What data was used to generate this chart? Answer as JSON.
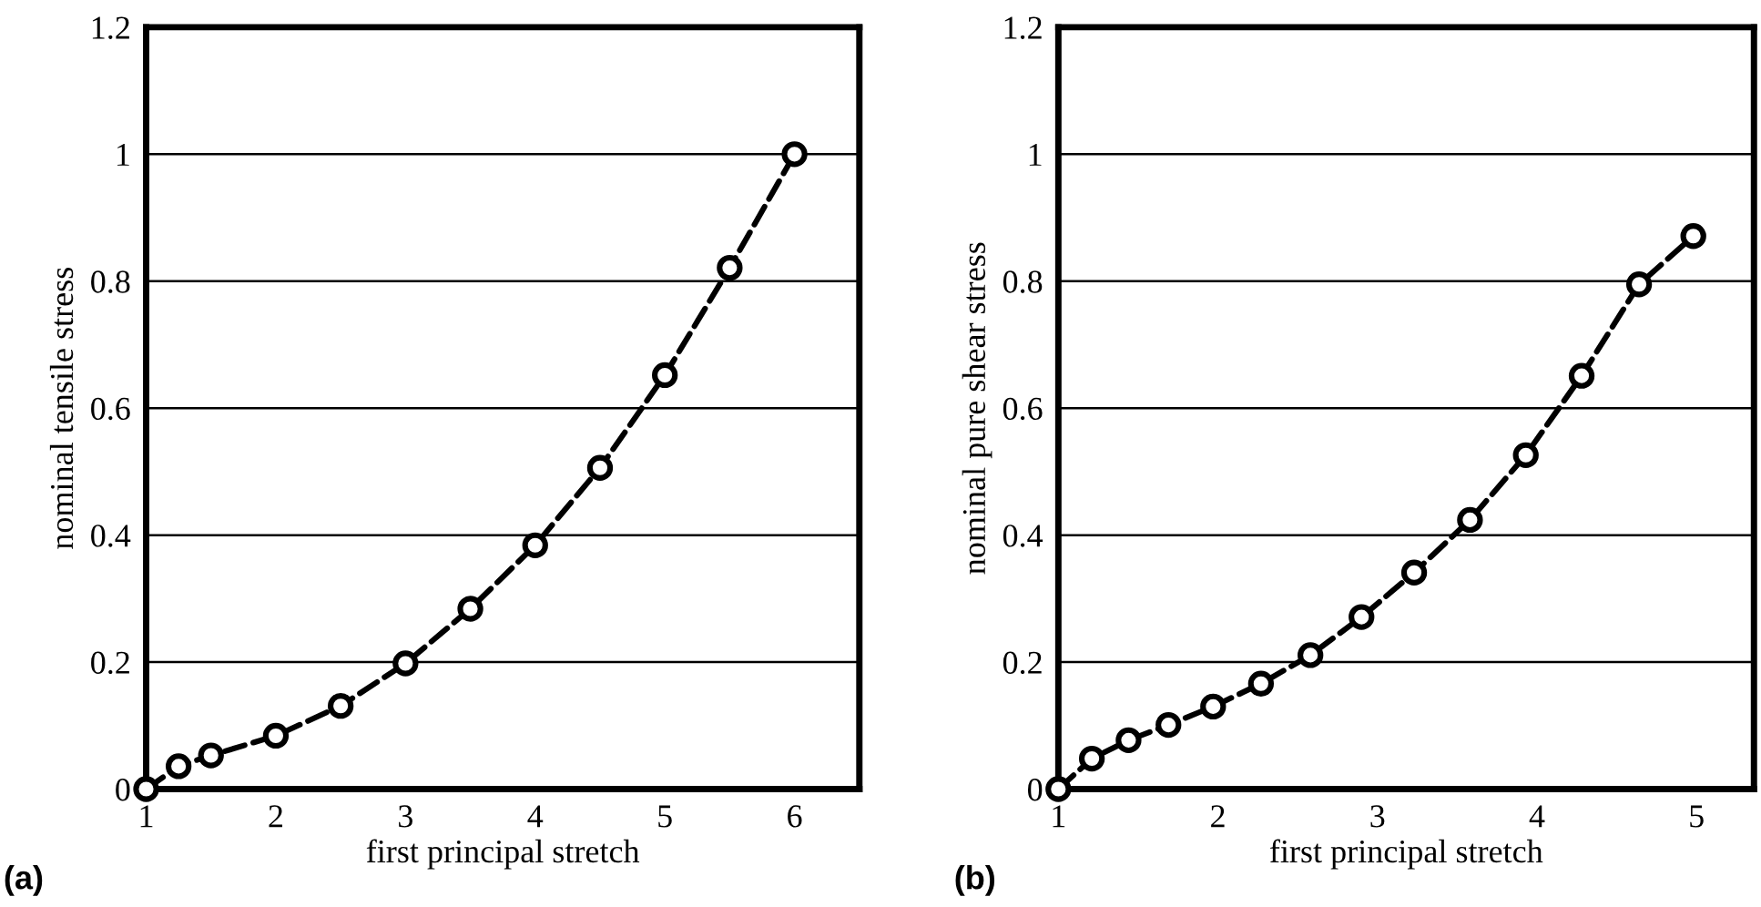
{
  "chart_data": [
    {
      "type": "line",
      "xlabel": "first principal stretch",
      "ylabel": "nominal tensile stress",
      "annotations": [
        "(a)"
      ],
      "xlim": [
        1,
        6.5
      ],
      "ylim": [
        0,
        1.2
      ],
      "xticks": [
        1,
        2,
        3,
        4,
        5,
        6
      ],
      "yticks": [
        0,
        0.2,
        0.4,
        0.6,
        0.8,
        1,
        1.2
      ],
      "grid": "y",
      "marker": "circle",
      "line_style": "dashed",
      "legend": false,
      "series": [
        {
          "color": "#000000",
          "x": [
            1,
            1.25,
            1.5,
            2,
            2.5,
            3,
            3.5,
            4,
            4.5,
            5,
            5.5,
            6
          ],
          "values": [
            0,
            0.036,
            0.053,
            0.084,
            0.131,
            0.198,
            0.284,
            0.384,
            0.506,
            0.652,
            0.821,
            1.0
          ]
        }
      ]
    },
    {
      "type": "line",
      "xlabel": "first principal stretch",
      "ylabel": "nominal pure shear stress",
      "annotations": [
        "(b)"
      ],
      "xlim": [
        1,
        5.36
      ],
      "ylim": [
        0,
        1.2
      ],
      "xticks": [
        1,
        2,
        3,
        4,
        5
      ],
      "yticks": [
        0,
        0.2,
        0.4,
        0.6,
        0.8,
        1,
        1.2
      ],
      "grid": "y",
      "marker": "circle",
      "line_style": "dashed",
      "legend": false,
      "series": [
        {
          "color": "#000000",
          "x": [
            1,
            1.21,
            1.44,
            1.69,
            1.97,
            2.27,
            2.58,
            2.9,
            3.23,
            3.58,
            3.93,
            4.28,
            4.64,
            4.98
          ],
          "values": [
            0,
            0.048,
            0.077,
            0.101,
            0.13,
            0.166,
            0.211,
            0.271,
            0.341,
            0.424,
            0.526,
            0.651,
            0.795,
            0.871
          ]
        }
      ]
    }
  ]
}
